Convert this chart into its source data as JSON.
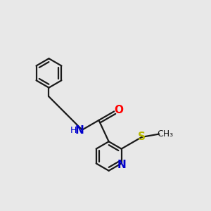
{
  "background_color": "#e8e8e8",
  "bond_color": "#1a1a1a",
  "bond_width": 1.6,
  "atoms": {
    "N_blue": "#0000cd",
    "O_red": "#ff0000",
    "S_yellow": "#b8b800",
    "C_black": "#1a1a1a"
  },
  "figsize": [
    3.0,
    3.0
  ],
  "dpi": 100,
  "xlim": [
    -2.5,
    3.0
  ],
  "ylim": [
    -3.2,
    3.2
  ]
}
